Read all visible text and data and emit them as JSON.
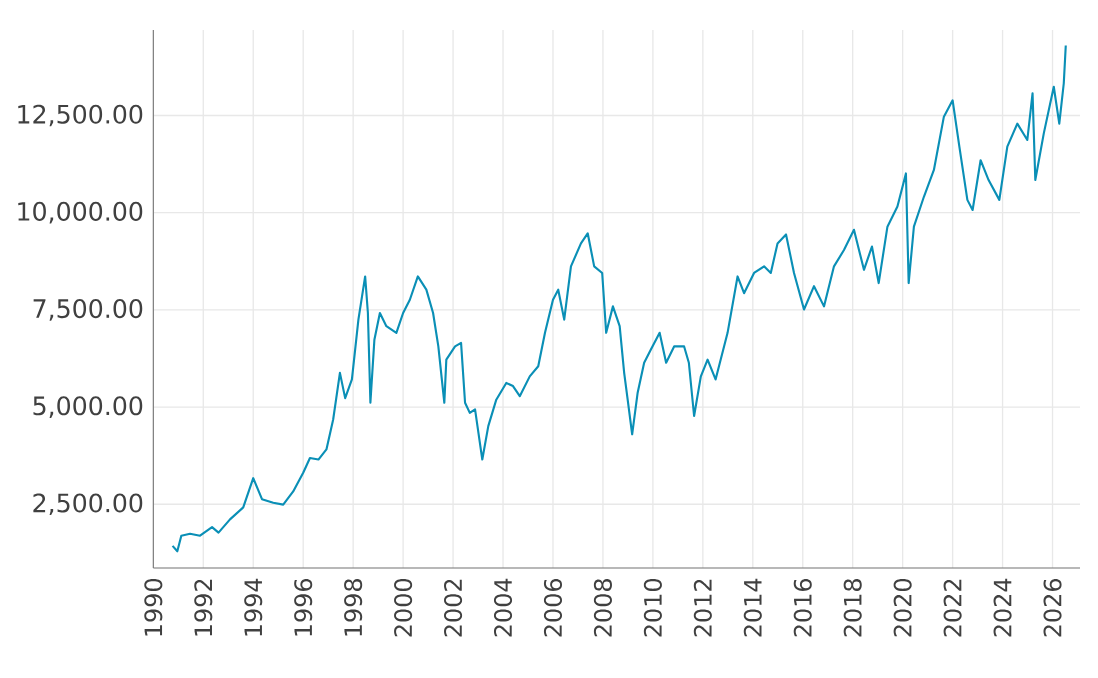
{
  "chart_data": {
    "type": "line",
    "x": [
      1990.77,
      1990.96,
      1991.12,
      1991.47,
      1991.87,
      1992.35,
      1992.61,
      1993.07,
      1993.6,
      1994.0,
      1994.35,
      1994.8,
      1995.2,
      1995.6,
      1996.0,
      1996.27,
      1996.61,
      1996.93,
      1997.2,
      1997.47,
      1997.68,
      1997.95,
      1998.21,
      1998.48,
      1998.59,
      1998.69,
      1998.85,
      1999.07,
      1999.33,
      1999.73,
      2000.0,
      2000.27,
      2000.59,
      2000.93,
      2001.2,
      2001.41,
      2001.65,
      2001.73,
      2002.08,
      2002.32,
      2002.48,
      2002.67,
      2002.88,
      2003.17,
      2003.41,
      2003.73,
      2004.13,
      2004.4,
      2004.67,
      2005.07,
      2005.41,
      2005.68,
      2006.0,
      2006.21,
      2006.45,
      2006.72,
      2007.12,
      2007.39,
      2007.65,
      2007.97,
      2008.13,
      2008.4,
      2008.67,
      2008.85,
      2008.99,
      2009.17,
      2009.39,
      2009.65,
      2009.92,
      2010.27,
      2010.53,
      2010.85,
      2011.25,
      2011.44,
      2011.65,
      2011.92,
      2012.19,
      2012.51,
      2012.99,
      2013.39,
      2013.65,
      2014.05,
      2014.45,
      2014.72,
      2014.99,
      2015.33,
      2015.65,
      2016.05,
      2016.45,
      2016.85,
      2017.25,
      2017.65,
      2018.05,
      2018.45,
      2018.77,
      2019.04,
      2019.39,
      2019.79,
      2020.13,
      2020.24,
      2020.45,
      2020.85,
      2021.25,
      2021.65,
      2022.0,
      2022.27,
      2022.59,
      2022.8,
      2023.12,
      2023.44,
      2023.87,
      2024.19,
      2024.59,
      2024.99,
      2025.2,
      2025.31,
      2025.65,
      2026.05,
      2026.27,
      2026.45,
      2026.53
    ],
    "series": [
      {
        "color": "#0a8fb6",
        "values": [
          1430,
          1290,
          1690,
          1740,
          1690,
          1910,
          1770,
          2110,
          2420,
          3170,
          2630,
          2540,
          2490,
          2830,
          3310,
          3690,
          3650,
          3910,
          4680,
          5880,
          5230,
          5710,
          7250,
          8360,
          7420,
          5110,
          6730,
          7420,
          7080,
          6910,
          7420,
          7760,
          8360,
          8020,
          7420,
          6560,
          5110,
          6220,
          6560,
          6650,
          5110,
          4850,
          4940,
          3650,
          4510,
          5190,
          5620,
          5540,
          5280,
          5790,
          6050,
          6910,
          7760,
          8020,
          7250,
          8620,
          9210,
          9470,
          8620,
          8450,
          6910,
          7590,
          7080,
          5880,
          5190,
          4300,
          5370,
          6140,
          6480,
          6910,
          6140,
          6560,
          6560,
          6140,
          4770,
          5790,
          6220,
          5710,
          6910,
          8360,
          7930,
          8450,
          8620,
          8450,
          9210,
          9440,
          8450,
          7510,
          8110,
          7590,
          8620,
          9040,
          9560,
          8530,
          9130,
          8190,
          9640,
          10160,
          11010,
          8190,
          9640,
          10410,
          11100,
          12470,
          12890,
          11700,
          10330,
          10070,
          11350,
          10840,
          10330,
          11700,
          12290,
          11870,
          13070,
          10840,
          12040,
          13240,
          12290,
          13330,
          14300
        ]
      }
    ],
    "xlim": [
      1990,
      2027.1
    ],
    "xticks": [
      1990,
      1992,
      1994,
      1996,
      1998,
      2000,
      2002,
      2004,
      2006,
      2008,
      2010,
      2012,
      2014,
      2016,
      2018,
      2020,
      2022,
      2024,
      2026
    ],
    "ylim": [
      860,
      14700
    ],
    "yticks": [
      {
        "value": 2500,
        "label": "2,500.00"
      },
      {
        "value": 5000,
        "label": "5,000.00"
      },
      {
        "value": 7500,
        "label": "7,500.00"
      },
      {
        "value": 10000,
        "label": "10,000.00"
      },
      {
        "value": 12500,
        "label": "12,500.00"
      }
    ],
    "grid": true,
    "marker": "none",
    "line_style": "solid"
  }
}
